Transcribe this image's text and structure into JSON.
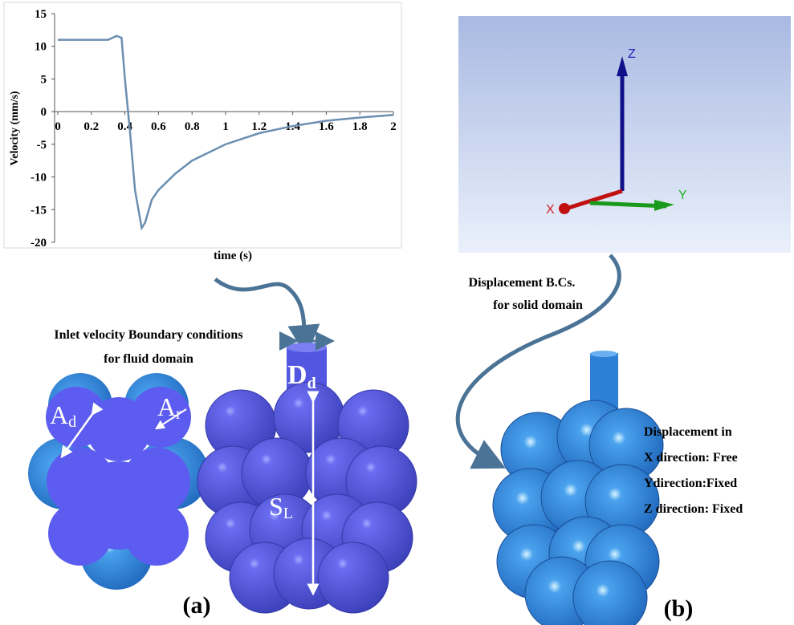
{
  "chart_data": {
    "type": "line",
    "y_label": "Velocity  (mm/s)",
    "x_label": "time (s)",
    "x": [
      0,
      0.3,
      0.35,
      0.38,
      0.4,
      0.43,
      0.46,
      0.5,
      0.52,
      0.56,
      0.6,
      0.7,
      0.8,
      1,
      1.2,
      1.4,
      1.6,
      1.8,
      2
    ],
    "series": [
      {
        "color": "#6b8fb0",
        "values": [
          11,
          11,
          11.6,
          11.3,
          5,
          -3,
          -12,
          -17.8,
          -17,
          -13.5,
          -12,
          -9.5,
          -7.5,
          -5,
          -3.3,
          -2.2,
          -1.4,
          -0.9,
          -0.5
        ]
      }
    ],
    "xlim": [
      0,
      2
    ],
    "xticks": [
      0,
      0.2,
      0.4,
      0.6,
      0.8,
      1,
      1.2,
      1.4,
      1.6,
      1.8,
      2
    ],
    "ylim": [
      -20,
      15
    ],
    "yticks": [
      -20,
      -15,
      -10,
      -5,
      0,
      5,
      10,
      15
    ]
  },
  "labels": {
    "inlet": [
      "Inlet velocity Boundary conditions",
      "for fluid domain"
    ],
    "displacement_bc": [
      "Displacement B.Cs.",
      "for solid domain"
    ],
    "displacement_in": [
      "Displacement in",
      "X direction: Free",
      "Ydirection:Fixed",
      "Z direction: Fixed"
    ],
    "dd": {
      "main": "D",
      "sub": "d"
    },
    "ad": {
      "main": "A",
      "sub": "d"
    },
    "ar": {
      "main": "A",
      "sub": "r"
    },
    "sl": {
      "main": "S",
      "sub": "L"
    },
    "axes": {
      "x": "X",
      "y": "Y",
      "z": "Z"
    },
    "panel_a": "(a)",
    "panel_b": "(b)"
  }
}
